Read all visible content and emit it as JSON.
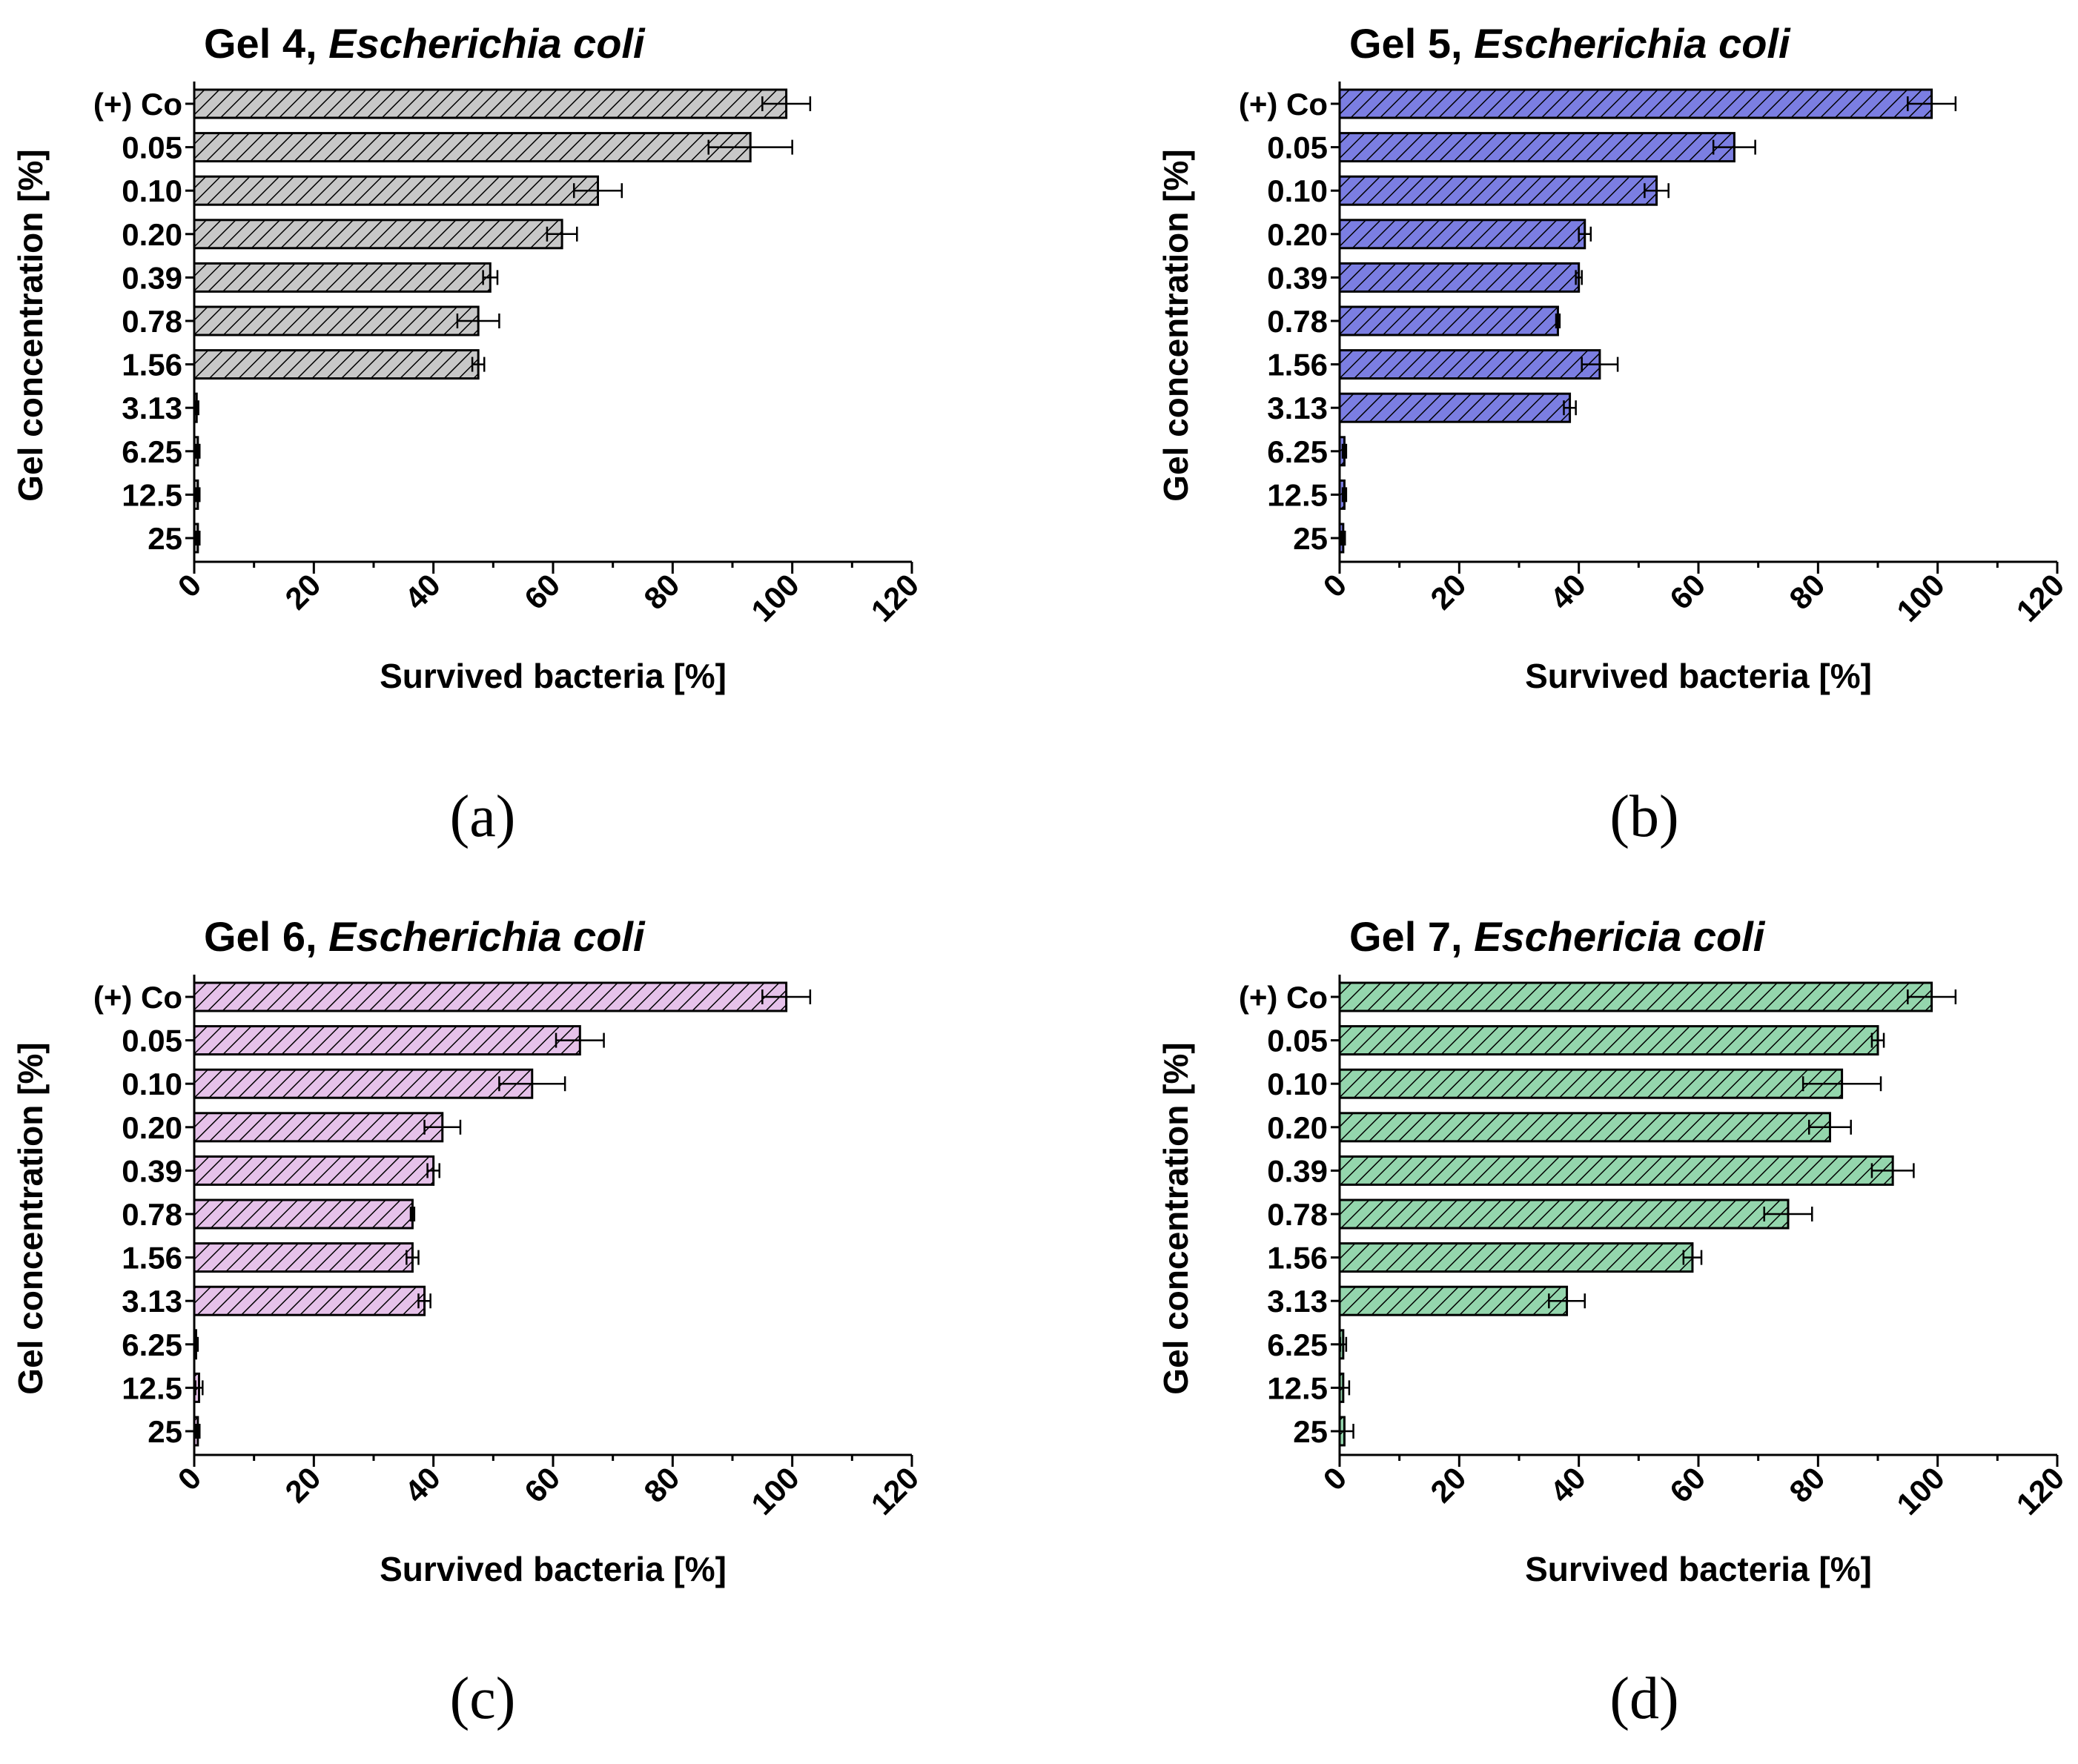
{
  "chart_data": [
    {
      "type": "bar",
      "orientation": "horizontal",
      "title_prefix": "Gel 4, ",
      "title_italic": "Escherichia coli",
      "panel_label": "(a)",
      "color": "#c8c8c8",
      "categories": [
        "(+) Co",
        "0.05",
        "0.10",
        "0.20",
        "0.39",
        "0.78",
        "1.56",
        "3.13",
        "6.25",
        "12.5",
        "25"
      ],
      "values": [
        99,
        93,
        67.5,
        61.5,
        49.5,
        47.5,
        47.5,
        0.4,
        0.6,
        0.6,
        0.6
      ],
      "errors": [
        4,
        7,
        4,
        2.5,
        1.2,
        3.5,
        1,
        0.3,
        0.3,
        0.3,
        0.3
      ],
      "xlabel": "Survived bacteria [%]",
      "ylabel": "Gel concentration [%]",
      "xlim": [
        0,
        120
      ],
      "xticks": [
        0,
        20,
        40,
        60,
        80,
        100,
        120
      ]
    },
    {
      "type": "bar",
      "orientation": "horizontal",
      "title_prefix": "Gel 5, ",
      "title_italic": "Escherichia coli",
      "panel_label": "(b)",
      "color": "#7b7ee2",
      "categories": [
        "(+) Co",
        "0.05",
        "0.10",
        "0.20",
        "0.39",
        "0.78",
        "1.56",
        "3.13",
        "6.25",
        "12.5",
        "25"
      ],
      "values": [
        99,
        66,
        53,
        41,
        40,
        36.5,
        43.5,
        38.5,
        0.8,
        0.8,
        0.6
      ],
      "errors": [
        4,
        3.5,
        2,
        1,
        0.5,
        0.3,
        3,
        1,
        0.3,
        0.3,
        0.3
      ],
      "xlabel": "Survived bacteria [%]",
      "ylabel": "Gel concentration [%]",
      "xlim": [
        0,
        120
      ],
      "xticks": [
        0,
        20,
        40,
        60,
        80,
        100,
        120
      ]
    },
    {
      "type": "bar",
      "orientation": "horizontal",
      "title_prefix": "Gel 6, ",
      "title_italic": "Escherichia coli",
      "panel_label": "(c)",
      "color": "#e6c2ea",
      "categories": [
        "(+) Co",
        "0.05",
        "0.10",
        "0.20",
        "0.39",
        "0.78",
        "1.56",
        "3.13",
        "6.25",
        "12.5",
        "25"
      ],
      "values": [
        99,
        64.5,
        56.5,
        41.5,
        40,
        36.5,
        36.5,
        38.5,
        0.3,
        0.8,
        0.6
      ],
      "errors": [
        4,
        4,
        5.5,
        3,
        1,
        0.3,
        1,
        1,
        0.3,
        0.6,
        0.3
      ],
      "xlabel": "Survived bacteria [%]",
      "ylabel": "Gel concentration [%]",
      "xlim": [
        0,
        120
      ],
      "xticks": [
        0,
        20,
        40,
        60,
        80,
        100,
        120
      ]
    },
    {
      "type": "bar",
      "orientation": "horizontal",
      "title_prefix": "Gel 7, ",
      "title_italic": "Eschericia coli",
      "panel_label": "(d)",
      "color": "#94d6ad",
      "categories": [
        "(+) Co",
        "0.05",
        "0.10",
        "0.20",
        "0.39",
        "0.78",
        "1.56",
        "3.13",
        "6.25",
        "12.5",
        "25"
      ],
      "values": [
        99,
        90,
        84,
        82,
        92.5,
        75,
        59,
        38,
        0.6,
        0.6,
        0.8
      ],
      "errors": [
        4,
        1,
        6.5,
        3.5,
        3.5,
        4,
        1.5,
        3,
        0.5,
        1,
        1.5
      ],
      "xlabel": "Survived bacteria [%]",
      "ylabel": "Gel concentration [%]",
      "xlim": [
        0,
        120
      ],
      "xticks": [
        0,
        20,
        40,
        60,
        80,
        100,
        120
      ]
    }
  ]
}
